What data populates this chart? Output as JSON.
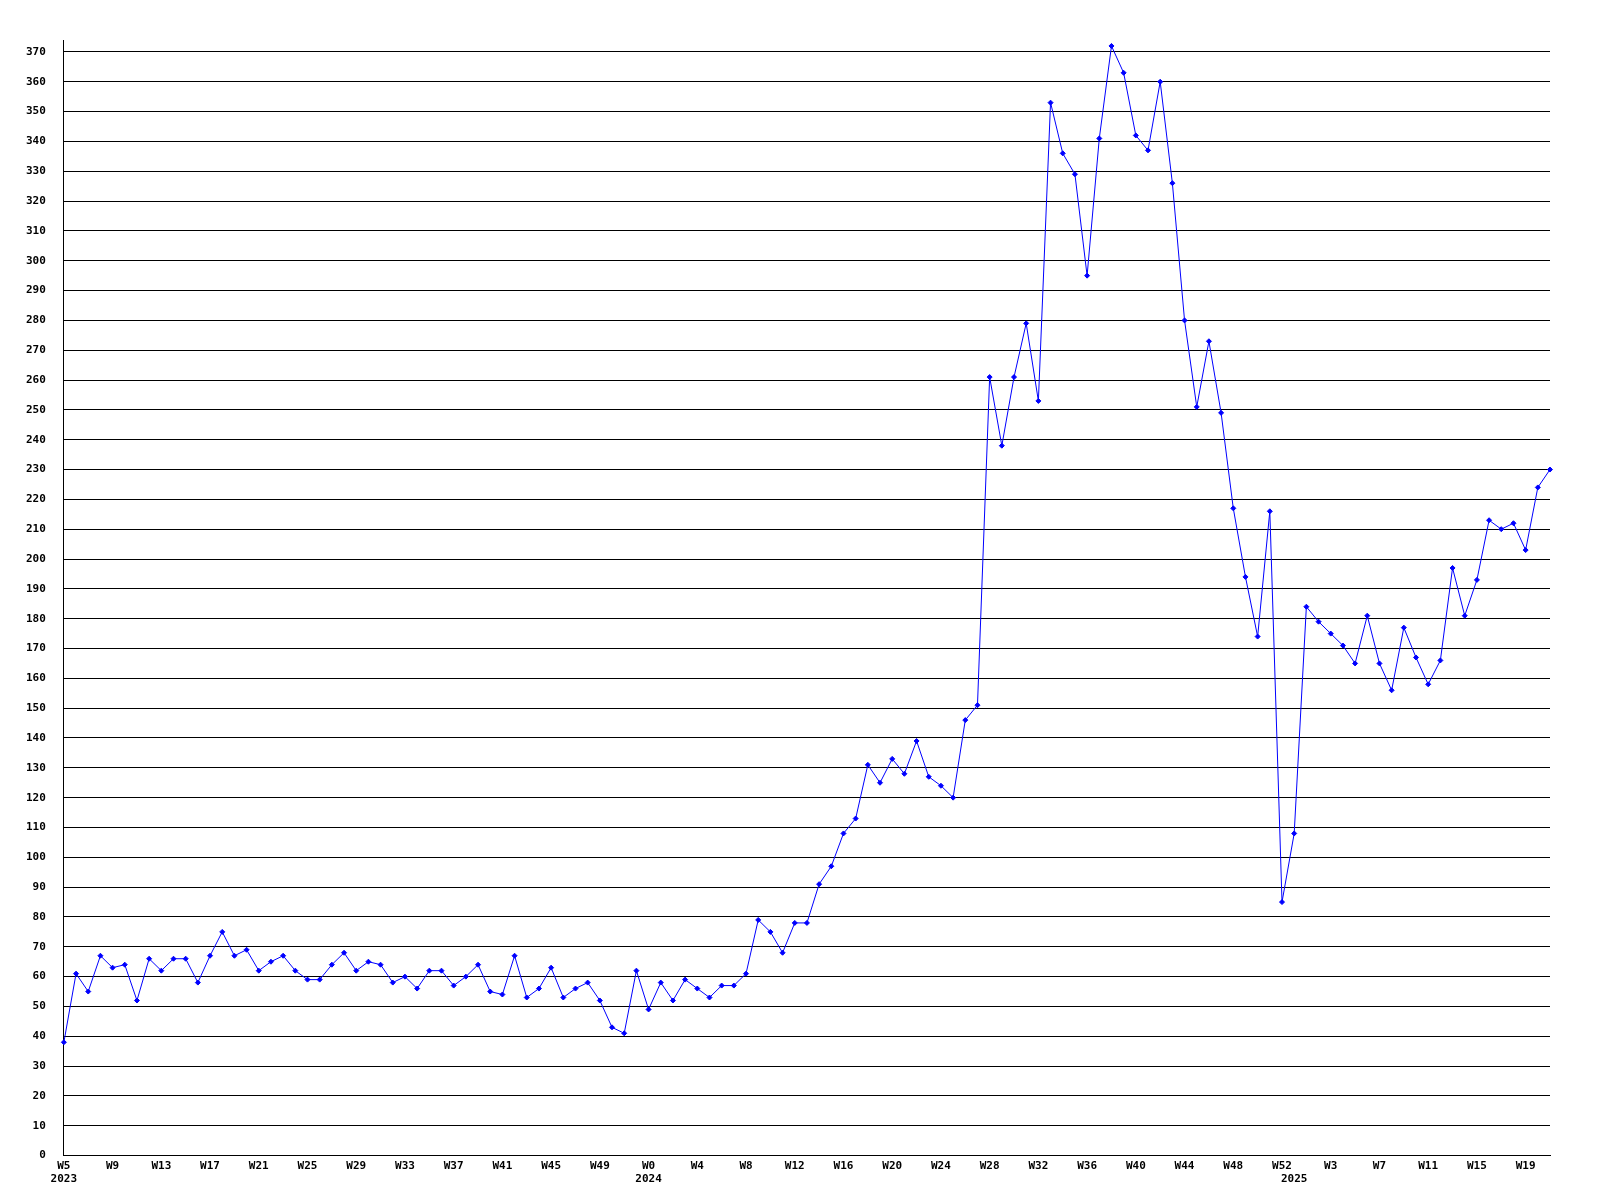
{
  "chart_data": {
    "type": "line",
    "categories": [
      "W5\n2023",
      null,
      null,
      null,
      "W9",
      null,
      null,
      null,
      "W13",
      null,
      null,
      null,
      "W17",
      null,
      null,
      null,
      "W21",
      null,
      null,
      null,
      "W25",
      null,
      null,
      null,
      "W29",
      null,
      null,
      null,
      "W33",
      null,
      null,
      null,
      "W37",
      null,
      null,
      null,
      "W41",
      null,
      null,
      null,
      "W45",
      null,
      null,
      null,
      "W49",
      null,
      null,
      null,
      "W0\n2024",
      null,
      null,
      null,
      "W4",
      null,
      null,
      null,
      "W8",
      null,
      null,
      null,
      "W12",
      null,
      null,
      null,
      "W16",
      null,
      null,
      null,
      "W20",
      null,
      null,
      null,
      "W24",
      null,
      null,
      null,
      "W28",
      null,
      null,
      null,
      "W32",
      null,
      null,
      null,
      "W36",
      null,
      null,
      null,
      "W40",
      null,
      null,
      null,
      "W44",
      null,
      null,
      null,
      "W48",
      null,
      null,
      null,
      "W52",
      "\n2025",
      null,
      null,
      "W3",
      null,
      null,
      null,
      "W7",
      null,
      null,
      null,
      "W11",
      null,
      null,
      null,
      "W15",
      null,
      null,
      null,
      "W19",
      null,
      null
    ],
    "series": [
      {
        "color": "#0000ff",
        "values": [
          38,
          61,
          55,
          67,
          63,
          64,
          52,
          66,
          62,
          66,
          66,
          58,
          67,
          75,
          67,
          69,
          62,
          65,
          67,
          62,
          59,
          59,
          64,
          68,
          62,
          65,
          64,
          58,
          60,
          56,
          62,
          62,
          57,
          60,
          64,
          55,
          54,
          67,
          53,
          56,
          63,
          53,
          56,
          58,
          52,
          43,
          41,
          62,
          49,
          58,
          52,
          59,
          56,
          53,
          57,
          57,
          61,
          79,
          75,
          68,
          78,
          78,
          91,
          97,
          108,
          113,
          131,
          125,
          133,
          128,
          139,
          127,
          124,
          120,
          146,
          151,
          261,
          238,
          261,
          279,
          253,
          353,
          336,
          329,
          295,
          341,
          372,
          363,
          342,
          337,
          360,
          326,
          280,
          251,
          273,
          249,
          217,
          194,
          174,
          216,
          85,
          108,
          184,
          179,
          175,
          171,
          165,
          181,
          165,
          156,
          177,
          167,
          158,
          166,
          197,
          181,
          193,
          213,
          210,
          212,
          203,
          224,
          230
        ]
      }
    ],
    "ylim": [
      0,
      374
    ],
    "yticks": [
      0,
      10,
      20,
      30,
      40,
      50,
      60,
      70,
      80,
      90,
      100,
      110,
      120,
      130,
      140,
      150,
      160,
      170,
      180,
      190,
      200,
      210,
      220,
      230,
      240,
      250,
      260,
      270,
      280,
      290,
      300,
      310,
      320,
      330,
      340,
      350,
      360,
      370
    ],
    "grid": "y",
    "legend": false,
    "marker": "diamond",
    "line_style": "solid"
  }
}
